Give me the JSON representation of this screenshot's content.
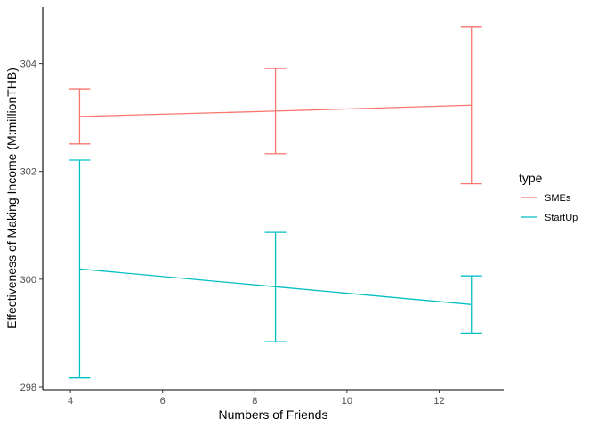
{
  "chart_data": {
    "type": "line",
    "xlabel": "Numbers of Friends",
    "ylabel": "Effectiveness of Making Income (M:millionTHB)",
    "xlim": [
      3.4,
      13.4
    ],
    "ylim": [
      297.95,
      305.05
    ],
    "x_ticks": [
      4,
      6,
      8,
      10,
      12
    ],
    "y_ticks": [
      298,
      300,
      302,
      304
    ],
    "grid": false,
    "legend": {
      "title": "type",
      "position": "right"
    },
    "series": [
      {
        "name": "SMEs",
        "color": "#F8766D",
        "points": [
          {
            "x": 4.2,
            "y": 303.02,
            "ymin": 302.51,
            "ymax": 303.53
          },
          {
            "x": 8.45,
            "y": 303.12,
            "ymin": 302.33,
            "ymax": 303.91
          },
          {
            "x": 12.7,
            "y": 303.23,
            "ymin": 301.77,
            "ymax": 304.69
          }
        ]
      },
      {
        "name": "StartUp",
        "color": "#00BFC4",
        "points": [
          {
            "x": 4.2,
            "y": 300.19,
            "ymin": 298.17,
            "ymax": 302.21
          },
          {
            "x": 8.45,
            "y": 299.86,
            "ymin": 298.84,
            "ymax": 300.87
          },
          {
            "x": 12.7,
            "y": 299.53,
            "ymin": 299.0,
            "ymax": 300.06
          }
        ]
      }
    ]
  }
}
